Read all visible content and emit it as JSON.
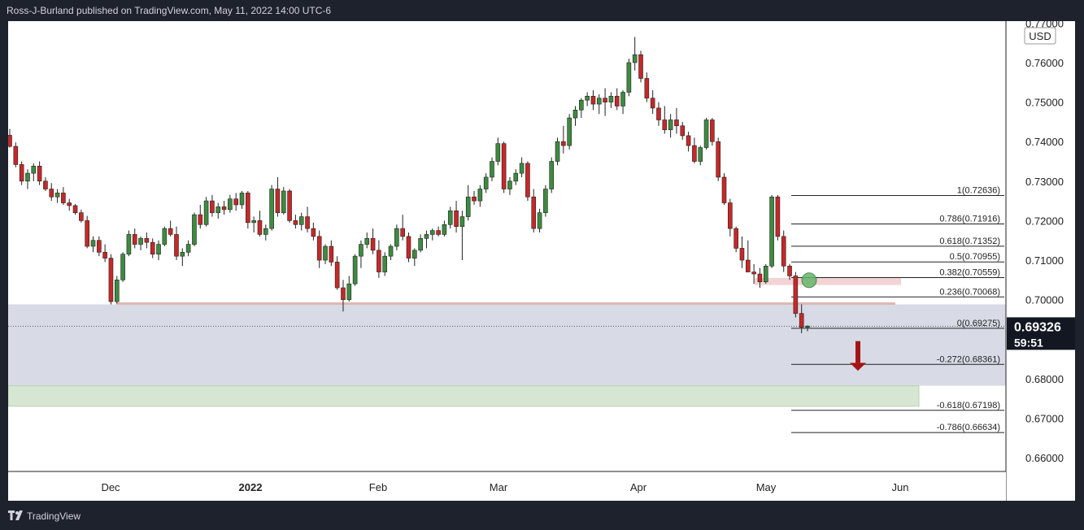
{
  "header": {
    "text": "Ross-J-Burland published on TradingView.com, May 11, 2022 14:00 UTC-6"
  },
  "footer": {
    "brand": "TradingView",
    "logo_icon": "tradingview-logo-icon"
  },
  "chart_data": {
    "type": "candlestick",
    "currency": "USD",
    "last_price": "0.69326",
    "countdown": "59:51",
    "y_ticks": [
      "0.77000",
      "0.76000",
      "0.75000",
      "0.74000",
      "0.73000",
      "0.72000",
      "0.71000",
      "0.70000",
      "0.69000",
      "0.68000",
      "0.67000",
      "0.66000"
    ],
    "x_labels": [
      "Dec",
      "2022",
      "Feb",
      "Mar",
      "Apr",
      "May",
      "Jun"
    ],
    "ylim": [
      0.6565,
      0.7705
    ],
    "fib_levels": [
      {
        "label": "1(0.72636)",
        "value": 0.72636
      },
      {
        "label": "0.786(0.71916)",
        "value": 0.71916
      },
      {
        "label": "0.618(0.71352)",
        "value": 0.71352
      },
      {
        "label": "0.5(0.70955)",
        "value": 0.70955
      },
      {
        "label": "0.382(0.70559)",
        "value": 0.70559
      },
      {
        "label": "0.236(0.70068)",
        "value": 0.70068
      },
      {
        "label": "0(0.69275)",
        "value": 0.69275
      },
      {
        "label": "-0.272(0.68361)",
        "value": 0.68361
      },
      {
        "label": "-0.618(0.67198)",
        "value": 0.67198
      },
      {
        "label": "-0.786(0.66634)",
        "value": 0.66634
      }
    ],
    "zones": [
      {
        "name": "support-zone",
        "from": 0.6782,
        "to": 0.6988,
        "color": "#d8dbe6"
      },
      {
        "name": "target-zone",
        "from": 0.673,
        "to": 0.6782,
        "color": "#d6e6d3"
      },
      {
        "name": "resistance-zone",
        "from": 0.7037,
        "to": 0.7055,
        "color": "#f3d4d6"
      }
    ],
    "support_line": 0.699,
    "candles": [
      [
        0.7416,
        0.7432,
        0.7385,
        0.7388
      ],
      [
        0.7388,
        0.7398,
        0.7335,
        0.7342
      ],
      [
        0.7342,
        0.735,
        0.729,
        0.73
      ],
      [
        0.73,
        0.733,
        0.728,
        0.732
      ],
      [
        0.732,
        0.7345,
        0.73,
        0.7338
      ],
      [
        0.7338,
        0.735,
        0.729,
        0.73
      ],
      [
        0.73,
        0.731,
        0.7275,
        0.728
      ],
      [
        0.728,
        0.7295,
        0.725,
        0.726
      ],
      [
        0.726,
        0.728,
        0.7245,
        0.727
      ],
      [
        0.727,
        0.7285,
        0.724,
        0.7245
      ],
      [
        0.7245,
        0.7255,
        0.7225,
        0.7238
      ],
      [
        0.7238,
        0.7242,
        0.7215,
        0.722
      ],
      [
        0.722,
        0.7228,
        0.7195,
        0.72
      ],
      [
        0.72,
        0.7212,
        0.713,
        0.7135
      ],
      [
        0.7135,
        0.716,
        0.712,
        0.715
      ],
      [
        0.715,
        0.716,
        0.711,
        0.712
      ],
      [
        0.712,
        0.714,
        0.7095,
        0.7105
      ],
      [
        0.7105,
        0.7115,
        0.6988,
        0.6995
      ],
      [
        0.6995,
        0.706,
        0.699,
        0.705
      ],
      [
        0.705,
        0.712,
        0.7045,
        0.7115
      ],
      [
        0.7115,
        0.7175,
        0.711,
        0.7165
      ],
      [
        0.7165,
        0.718,
        0.713,
        0.714
      ],
      [
        0.714,
        0.716,
        0.7125,
        0.7155
      ],
      [
        0.7155,
        0.717,
        0.713,
        0.7145
      ],
      [
        0.7145,
        0.7155,
        0.7105,
        0.7115
      ],
      [
        0.7115,
        0.715,
        0.71,
        0.714
      ],
      [
        0.714,
        0.7185,
        0.7135,
        0.718
      ],
      [
        0.718,
        0.72,
        0.716,
        0.7165
      ],
      [
        0.7165,
        0.7185,
        0.71,
        0.711
      ],
      [
        0.711,
        0.713,
        0.7085,
        0.712
      ],
      [
        0.712,
        0.715,
        0.711,
        0.714
      ],
      [
        0.714,
        0.722,
        0.7135,
        0.7215
      ],
      [
        0.7215,
        0.724,
        0.718,
        0.719
      ],
      [
        0.719,
        0.726,
        0.7185,
        0.725
      ],
      [
        0.725,
        0.7265,
        0.721,
        0.722
      ],
      [
        0.722,
        0.7245,
        0.7205,
        0.7235
      ],
      [
        0.7235,
        0.725,
        0.7215,
        0.7228
      ],
      [
        0.7228,
        0.7265,
        0.722,
        0.7255
      ],
      [
        0.7255,
        0.727,
        0.7225,
        0.724
      ],
      [
        0.724,
        0.7275,
        0.723,
        0.727
      ],
      [
        0.727,
        0.7275,
        0.718,
        0.7195
      ],
      [
        0.7195,
        0.721,
        0.717,
        0.72
      ],
      [
        0.72,
        0.7225,
        0.716,
        0.7165
      ],
      [
        0.7165,
        0.719,
        0.715,
        0.718
      ],
      [
        0.718,
        0.729,
        0.7175,
        0.728
      ],
      [
        0.728,
        0.731,
        0.721,
        0.722
      ],
      [
        0.722,
        0.7285,
        0.7215,
        0.7275
      ],
      [
        0.7275,
        0.728,
        0.7195,
        0.72
      ],
      [
        0.72,
        0.7215,
        0.718,
        0.719
      ],
      [
        0.719,
        0.722,
        0.7175,
        0.721
      ],
      [
        0.721,
        0.7235,
        0.717,
        0.718
      ],
      [
        0.718,
        0.7195,
        0.715,
        0.716
      ],
      [
        0.716,
        0.7175,
        0.708,
        0.71
      ],
      [
        0.71,
        0.714,
        0.709,
        0.7135
      ],
      [
        0.7135,
        0.715,
        0.7085,
        0.7095
      ],
      [
        0.7095,
        0.711,
        0.7025,
        0.703
      ],
      [
        0.703,
        0.705,
        0.697,
        0.7
      ],
      [
        0.7,
        0.706,
        0.6995,
        0.704
      ],
      [
        0.704,
        0.7115,
        0.7035,
        0.711
      ],
      [
        0.711,
        0.715,
        0.708,
        0.714
      ],
      [
        0.714,
        0.717,
        0.713,
        0.7155
      ],
      [
        0.7155,
        0.718,
        0.7115,
        0.7125
      ],
      [
        0.7125,
        0.715,
        0.7055,
        0.707
      ],
      [
        0.707,
        0.712,
        0.706,
        0.711
      ],
      [
        0.711,
        0.714,
        0.71,
        0.7135
      ],
      [
        0.7135,
        0.719,
        0.7125,
        0.718
      ],
      [
        0.718,
        0.7215,
        0.715,
        0.716
      ],
      [
        0.716,
        0.717,
        0.7095,
        0.7105
      ],
      [
        0.7105,
        0.713,
        0.7085,
        0.7125
      ],
      [
        0.7125,
        0.7165,
        0.712,
        0.7155
      ],
      [
        0.7155,
        0.7175,
        0.713,
        0.7165
      ],
      [
        0.7165,
        0.718,
        0.715,
        0.7175
      ],
      [
        0.7175,
        0.7185,
        0.716,
        0.7165
      ],
      [
        0.7165,
        0.72,
        0.716,
        0.719
      ],
      [
        0.719,
        0.7235,
        0.718,
        0.7225
      ],
      [
        0.7225,
        0.725,
        0.717,
        0.7185
      ],
      [
        0.7185,
        0.7225,
        0.71,
        0.721
      ],
      [
        0.721,
        0.729,
        0.72,
        0.726
      ],
      [
        0.726,
        0.7275,
        0.724,
        0.725
      ],
      [
        0.725,
        0.729,
        0.7235,
        0.728
      ],
      [
        0.728,
        0.732,
        0.727,
        0.731
      ],
      [
        0.731,
        0.736,
        0.73,
        0.735
      ],
      [
        0.735,
        0.741,
        0.734,
        0.7395
      ],
      [
        0.7395,
        0.74,
        0.727,
        0.728
      ],
      [
        0.728,
        0.731,
        0.7265,
        0.73
      ],
      [
        0.73,
        0.733,
        0.729,
        0.732
      ],
      [
        0.732,
        0.736,
        0.731,
        0.7345
      ],
      [
        0.7345,
        0.735,
        0.725,
        0.726
      ],
      [
        0.726,
        0.728,
        0.717,
        0.718
      ],
      [
        0.718,
        0.723,
        0.717,
        0.722
      ],
      [
        0.722,
        0.729,
        0.721,
        0.728
      ],
      [
        0.728,
        0.736,
        0.727,
        0.735
      ],
      [
        0.735,
        0.741,
        0.734,
        0.74
      ],
      [
        0.74,
        0.744,
        0.737,
        0.739
      ],
      [
        0.739,
        0.747,
        0.738,
        0.746
      ],
      [
        0.746,
        0.749,
        0.744,
        0.748
      ],
      [
        0.748,
        0.751,
        0.746,
        0.7505
      ],
      [
        0.7505,
        0.7525,
        0.749,
        0.7515
      ],
      [
        0.7515,
        0.753,
        0.748,
        0.7495
      ],
      [
        0.7495,
        0.752,
        0.747,
        0.751
      ],
      [
        0.751,
        0.7535,
        0.7465,
        0.75
      ],
      [
        0.75,
        0.7525,
        0.7485,
        0.7515
      ],
      [
        0.7515,
        0.7535,
        0.748,
        0.749
      ],
      [
        0.749,
        0.753,
        0.747,
        0.7525
      ],
      [
        0.7525,
        0.761,
        0.7515,
        0.76
      ],
      [
        0.76,
        0.7665,
        0.758,
        0.762
      ],
      [
        0.762,
        0.763,
        0.755,
        0.756
      ],
      [
        0.756,
        0.7575,
        0.75,
        0.751
      ],
      [
        0.751,
        0.753,
        0.747,
        0.7485
      ],
      [
        0.7485,
        0.75,
        0.744,
        0.7455
      ],
      [
        0.7455,
        0.749,
        0.742,
        0.743
      ],
      [
        0.743,
        0.747,
        0.741,
        0.7455
      ],
      [
        0.7455,
        0.7485,
        0.742,
        0.744
      ],
      [
        0.744,
        0.745,
        0.7405,
        0.7415
      ],
      [
        0.7415,
        0.7425,
        0.7375,
        0.739
      ],
      [
        0.739,
        0.741,
        0.7345,
        0.735
      ],
      [
        0.735,
        0.739,
        0.734,
        0.7385
      ],
      [
        0.7385,
        0.746,
        0.738,
        0.7455
      ],
      [
        0.7455,
        0.746,
        0.739,
        0.74
      ],
      [
        0.74,
        0.741,
        0.73,
        0.731
      ],
      [
        0.731,
        0.732,
        0.724,
        0.7245
      ],
      [
        0.7245,
        0.7255,
        0.716,
        0.718
      ],
      [
        0.718,
        0.7185,
        0.712,
        0.713
      ],
      [
        0.713,
        0.716,
        0.708,
        0.71
      ],
      [
        0.71,
        0.715,
        0.707,
        0.707
      ],
      [
        0.707,
        0.709,
        0.704,
        0.7065
      ],
      [
        0.7065,
        0.708,
        0.703,
        0.7045
      ],
      [
        0.7045,
        0.709,
        0.704,
        0.7085
      ],
      [
        0.7085,
        0.7265,
        0.708,
        0.726
      ],
      [
        0.726,
        0.7265,
        0.715,
        0.716
      ],
      [
        0.716,
        0.7175,
        0.707,
        0.7085
      ],
      [
        0.7085,
        0.709,
        0.705,
        0.706
      ],
      [
        0.706,
        0.707,
        0.6955,
        0.6965
      ],
      [
        0.6965,
        0.6988,
        0.6915,
        0.693
      ],
      [
        0.693,
        0.6935,
        0.692,
        0.6933
      ]
    ]
  }
}
